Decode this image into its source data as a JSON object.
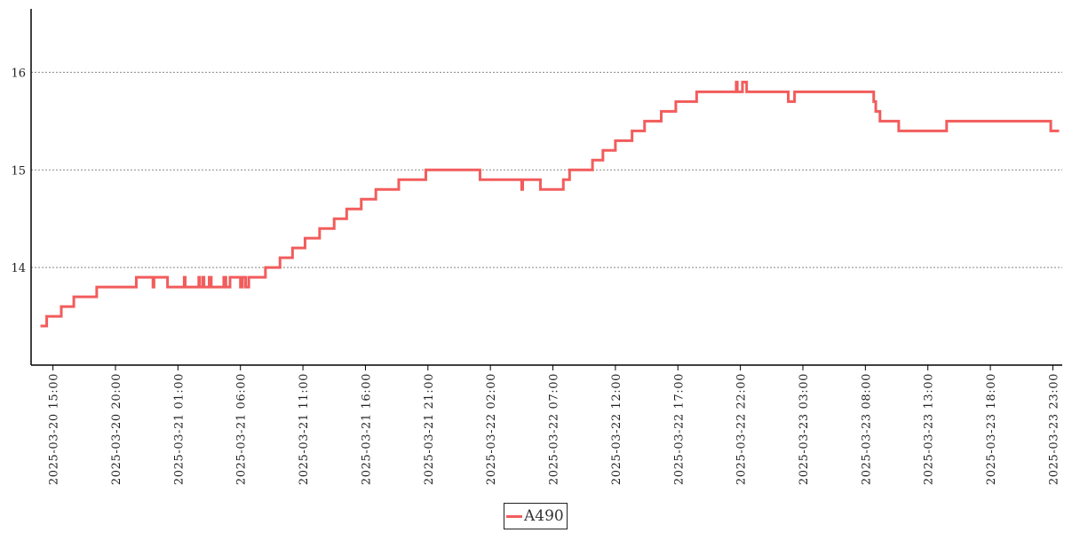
{
  "chart_data": {
    "type": "line",
    "step": true,
    "grid": "horizontal dotted",
    "legend_position": "bottom-center",
    "colors": {
      "series": "#f25c5c",
      "grid": "#888888",
      "axis": "#000000"
    },
    "ylim": [
      13.0,
      16.65
    ],
    "yticks": [
      14,
      15,
      16
    ],
    "xlim": [
      "2025-03-20T13:15",
      "2025-03-23T23:45"
    ],
    "xticks": [
      {
        "t": "2025-03-20T15:00",
        "label": "2025-03-20 15:00"
      },
      {
        "t": "2025-03-20T20:00",
        "label": "2025-03-20 20:00"
      },
      {
        "t": "2025-03-21T01:00",
        "label": "2025-03-21 01:00"
      },
      {
        "t": "2025-03-21T06:00",
        "label": "2025-03-21 06:00"
      },
      {
        "t": "2025-03-21T11:00",
        "label": "2025-03-21 11:00"
      },
      {
        "t": "2025-03-21T16:00",
        "label": "2025-03-21 16:00"
      },
      {
        "t": "2025-03-21T21:00",
        "label": "2025-03-21 21:00"
      },
      {
        "t": "2025-03-22T02:00",
        "label": "2025-03-22 02:00"
      },
      {
        "t": "2025-03-22T07:00",
        "label": "2025-03-22 07:00"
      },
      {
        "t": "2025-03-22T12:00",
        "label": "2025-03-22 12:00"
      },
      {
        "t": "2025-03-22T17:00",
        "label": "2025-03-22 17:00"
      },
      {
        "t": "2025-03-22T22:00",
        "label": "2025-03-22 22:00"
      },
      {
        "t": "2025-03-23T03:00",
        "label": "2025-03-23 03:00"
      },
      {
        "t": "2025-03-23T08:00",
        "label": "2025-03-23 08:00"
      },
      {
        "t": "2025-03-23T13:00",
        "label": "2025-03-23 13:00"
      },
      {
        "t": "2025-03-23T18:00",
        "label": "2025-03-23 18:00"
      },
      {
        "t": "2025-03-23T23:00",
        "label": "2025-03-23 23:00"
      }
    ],
    "series": [
      {
        "name": "A490",
        "points": [
          [
            "2025-03-20T14:00",
            13.4
          ],
          [
            "2025-03-20T14:30",
            13.5
          ],
          [
            "2025-03-20T15:40",
            13.6
          ],
          [
            "2025-03-20T16:40",
            13.7
          ],
          [
            "2025-03-20T18:30",
            13.8
          ],
          [
            "2025-03-20T21:40",
            13.9
          ],
          [
            "2025-03-20T23:00",
            13.8
          ],
          [
            "2025-03-20T23:05",
            13.9
          ],
          [
            "2025-03-21T00:10",
            13.8
          ],
          [
            "2025-03-21T01:30",
            13.9
          ],
          [
            "2025-03-21T01:35",
            13.8
          ],
          [
            "2025-03-21T02:40",
            13.9
          ],
          [
            "2025-03-21T02:45",
            13.8
          ],
          [
            "2025-03-21T03:00",
            13.9
          ],
          [
            "2025-03-21T03:05",
            13.8
          ],
          [
            "2025-03-21T03:30",
            13.9
          ],
          [
            "2025-03-21T03:40",
            13.8
          ],
          [
            "2025-03-21T04:40",
            13.9
          ],
          [
            "2025-03-21T04:50",
            13.8
          ],
          [
            "2025-03-21T05:10",
            13.9
          ],
          [
            "2025-03-21T06:00",
            13.8
          ],
          [
            "2025-03-21T06:10",
            13.9
          ],
          [
            "2025-03-21T06:25",
            13.8
          ],
          [
            "2025-03-21T06:40",
            13.9
          ],
          [
            "2025-03-21T08:00",
            14.0
          ],
          [
            "2025-03-21T09:10",
            14.1
          ],
          [
            "2025-03-21T10:10",
            14.2
          ],
          [
            "2025-03-21T11:10",
            14.3
          ],
          [
            "2025-03-21T12:20",
            14.4
          ],
          [
            "2025-03-21T13:30",
            14.5
          ],
          [
            "2025-03-21T14:30",
            14.6
          ],
          [
            "2025-03-21T15:40",
            14.7
          ],
          [
            "2025-03-21T16:50",
            14.8
          ],
          [
            "2025-03-21T18:40",
            14.9
          ],
          [
            "2025-03-21T20:50",
            15.0
          ],
          [
            "2025-03-22T01:10",
            14.9
          ],
          [
            "2025-03-22T04:30",
            14.8
          ],
          [
            "2025-03-22T04:35",
            14.9
          ],
          [
            "2025-03-22T06:00",
            14.8
          ],
          [
            "2025-03-22T07:50",
            14.9
          ],
          [
            "2025-03-22T08:20",
            15.0
          ],
          [
            "2025-03-22T10:10",
            15.1
          ],
          [
            "2025-03-22T11:00",
            15.2
          ],
          [
            "2025-03-22T12:00",
            15.3
          ],
          [
            "2025-03-22T13:20",
            15.4
          ],
          [
            "2025-03-22T14:20",
            15.5
          ],
          [
            "2025-03-22T15:40",
            15.6
          ],
          [
            "2025-03-22T16:50",
            15.7
          ],
          [
            "2025-03-22T18:30",
            15.8
          ],
          [
            "2025-03-22T21:40",
            15.9
          ],
          [
            "2025-03-22T21:45",
            15.8
          ],
          [
            "2025-03-22T22:10",
            15.9
          ],
          [
            "2025-03-22T22:30",
            15.8
          ],
          [
            "2025-03-23T01:50",
            15.7
          ],
          [
            "2025-03-23T02:20",
            15.8
          ],
          [
            "2025-03-23T08:40",
            15.7
          ],
          [
            "2025-03-23T08:50",
            15.6
          ],
          [
            "2025-03-23T09:10",
            15.5
          ],
          [
            "2025-03-23T10:40",
            15.4
          ],
          [
            "2025-03-23T14:30",
            15.5
          ],
          [
            "2025-03-23T22:50",
            15.4
          ],
          [
            "2025-03-23T23:30",
            15.4
          ]
        ]
      }
    ]
  }
}
